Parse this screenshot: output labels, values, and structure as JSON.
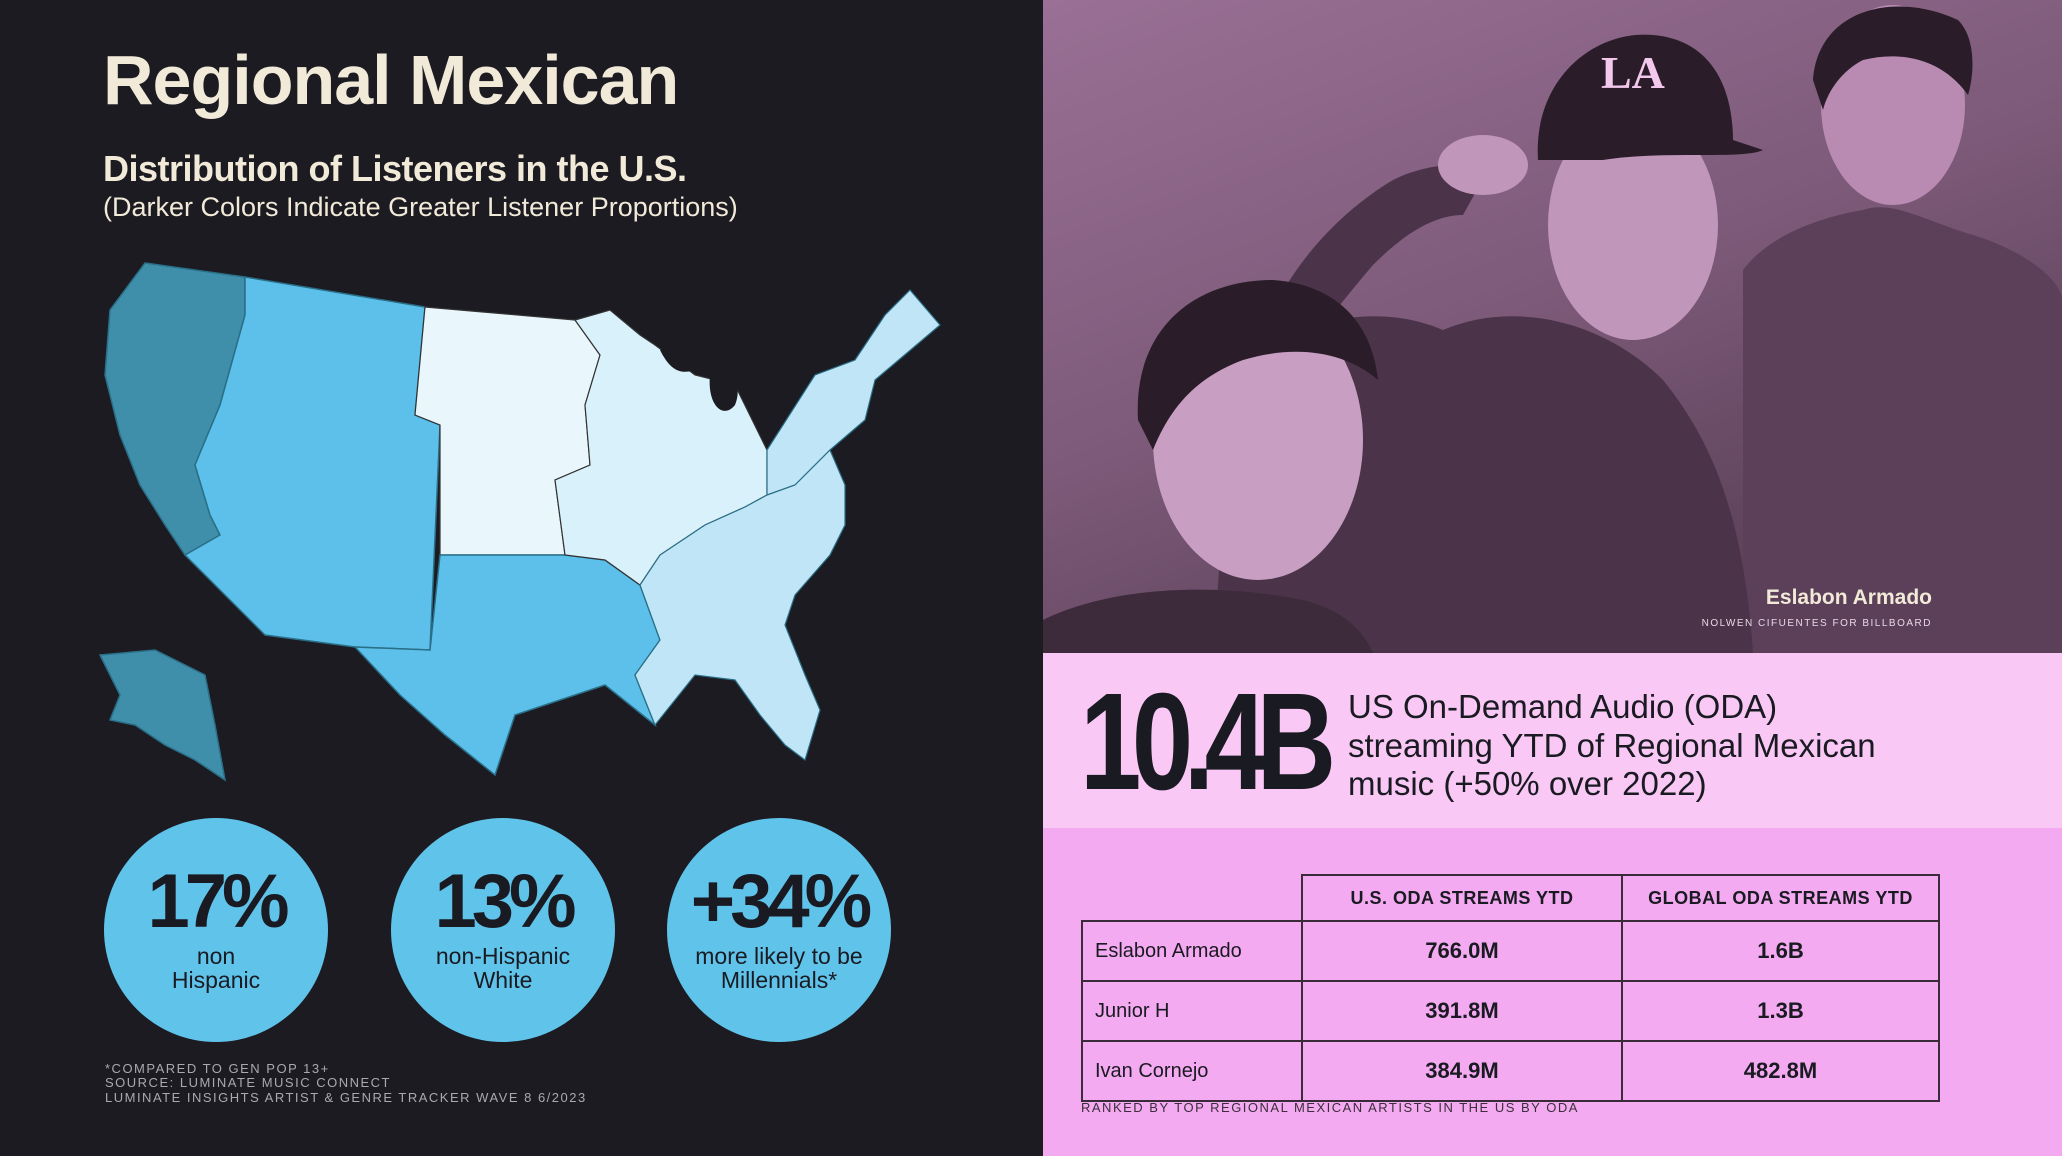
{
  "left": {
    "title": "Regional Mexican",
    "subtitle": "Distribution of Listeners in the U.S.",
    "subnote": "(Darker Colors Indicate Greater Listener Proportions)",
    "colors": {
      "darkest": "#3f8fab",
      "dark": "#5cc0ea",
      "medium": "#bfe5f6",
      "light": "#d9f1fb",
      "lightest": "#e9f7fd"
    },
    "stats": [
      {
        "value": "17%",
        "label_line1": "non",
        "label_line2": "Hispanic"
      },
      {
        "value": "13%",
        "label_line1": "non-Hispanic",
        "label_line2": "White"
      },
      {
        "value": "+34%",
        "label_line1": "more likely to be",
        "label_line2": "Millennials*"
      }
    ],
    "footnotes": [
      "*COMPARED TO GEN POP 13+",
      "SOURCE: LUMINATE MUSIC CONNECT",
      "LUMINATE INSIGHTS ARTIST & GENRE TRACKER WAVE 8 6/2023"
    ]
  },
  "right": {
    "photo_caption": {
      "name": "Eslabon Armado",
      "credit": "NOLWEN CIFUENTES FOR BILLBOARD"
    },
    "hero": {
      "number": "10.4B",
      "line1": "US On-Demand Audio (ODA)",
      "line2": "streaming YTD of Regional Mexican",
      "line3": "music (+50% over 2022)"
    },
    "table": {
      "headers": [
        "U.S. ODA STREAMS YTD",
        "GLOBAL ODA STREAMS YTD"
      ],
      "rows": [
        {
          "artist": "Eslabon Armado",
          "us": "766.0M",
          "global": "1.6B"
        },
        {
          "artist": "Junior H",
          "us": "391.8M",
          "global": "1.3B"
        },
        {
          "artist": "Ivan Cornejo",
          "us": "384.9M",
          "global": "482.8M"
        }
      ],
      "note": "RANKED BY TOP REGIONAL MEXICAN ARTISTS IN THE US BY ODA"
    }
  }
}
